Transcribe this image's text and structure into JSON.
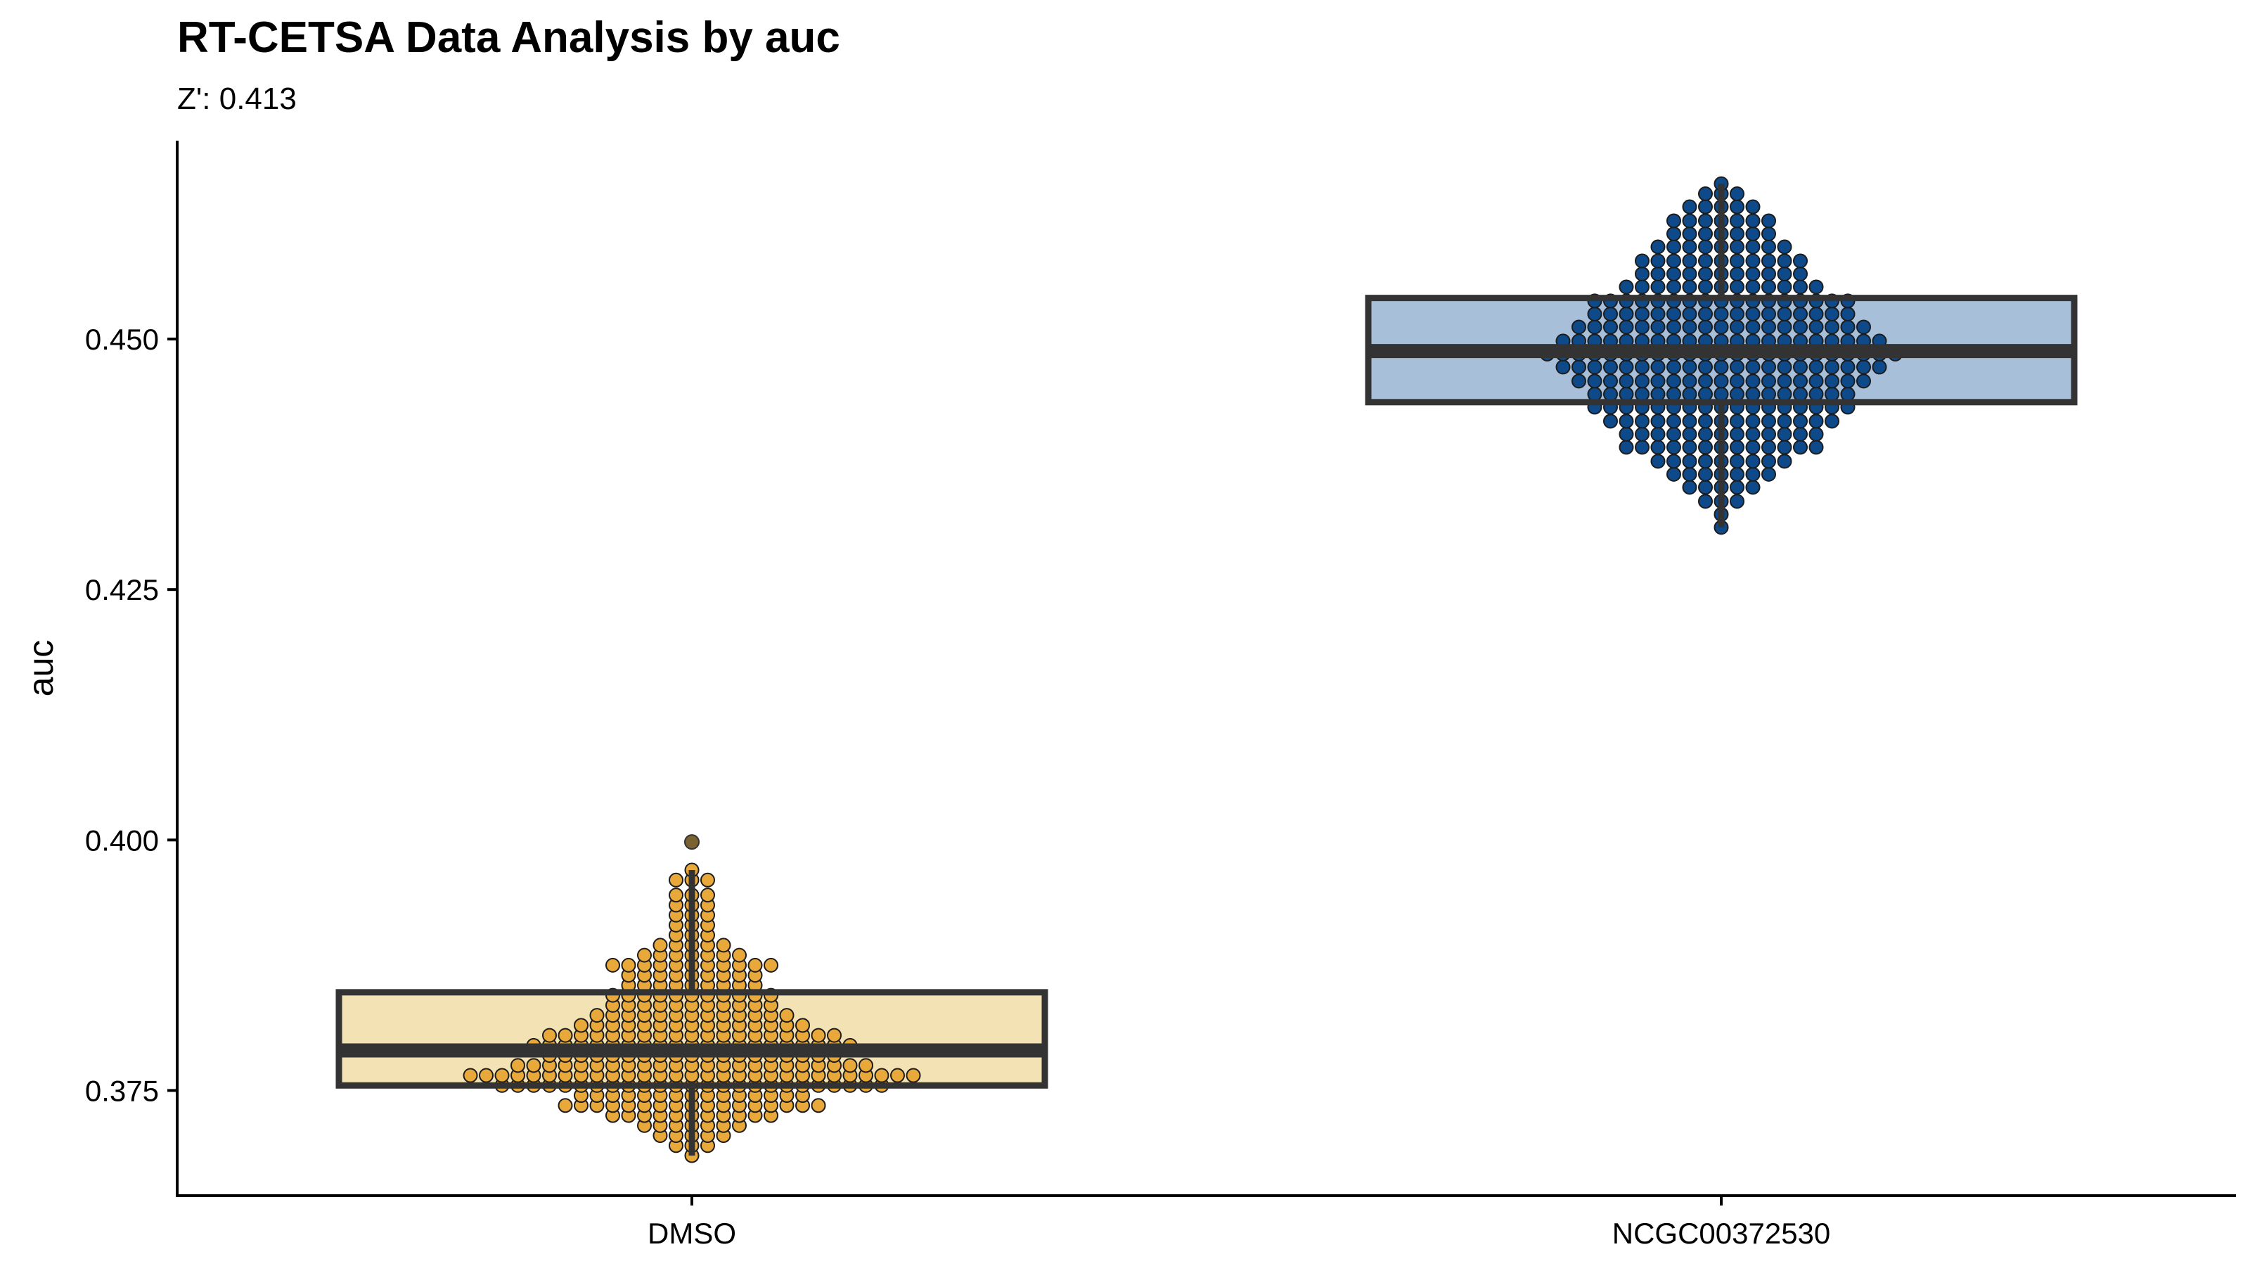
{
  "chart_data": {
    "type": "box",
    "title": "RT-CETSA Data Analysis by auc",
    "subtitle": "Z': 0.413",
    "xlabel": "",
    "ylabel": "auc",
    "ylim": [
      0.3645,
      0.4698
    ],
    "yticks": [
      0.375,
      0.4,
      0.425,
      0.45
    ],
    "ytick_labels": [
      "0.375",
      "0.400",
      "0.425",
      "0.450"
    ],
    "categories": [
      "DMSO",
      "NCGC00372530"
    ],
    "grid": false,
    "legend": "none",
    "boxes": [
      {
        "name": "DMSO",
        "q1": 0.3755,
        "median": 0.379,
        "q3": 0.3848,
        "whisker_low": 0.3685,
        "whisker_high": 0.397,
        "fill": "#f2e2b4",
        "point_color": "#e8a93a",
        "outliers": [
          0.3998
        ]
      },
      {
        "name": "NCGC00372530",
        "q1": 0.4437,
        "median": 0.4488,
        "q3": 0.4541,
        "whisker_low": 0.4312,
        "whisker_high": 0.4655,
        "fill": "#a8bfda",
        "point_color": "#0e4a8a",
        "outliers": []
      }
    ],
    "points": {
      "DMSO": {
        "0.3685": 1,
        "0.3695": 3,
        "0.3705": 5,
        "0.3715": 7,
        "0.3725": 11,
        "0.3735": 17,
        "0.3745": 15,
        "0.3755": 25,
        "0.3765": 29,
        "0.3775": 23,
        "0.3785": 19,
        "0.3795": 21,
        "0.3805": 19,
        "0.3815": 15,
        "0.3825": 13,
        "0.3835": 11,
        "0.3845": 11,
        "0.3855": 9,
        "0.3865": 9,
        "0.3875": 11,
        "0.3885": 7,
        "0.3895": 5,
        "0.3905": 3,
        "0.3915": 3,
        "0.3925": 3,
        "0.3935": 3,
        "0.3945": 3,
        "0.3960": 3,
        "0.3970": 1,
        "0.3998": 1
      },
      "NCGC00372530": {
        "0.4312": 1,
        "0.4325": 1,
        "0.4338": 3,
        "0.4352": 5,
        "0.4365": 7,
        "0.4378": 9,
        "0.4392": 13,
        "0.4405": 13,
        "0.4418": 15,
        "0.4432": 17,
        "0.4445": 17,
        "0.4458": 19,
        "0.4472": 21,
        "0.4485": 23,
        "0.4498": 21,
        "0.4512": 19,
        "0.4525": 17,
        "0.4538": 17,
        "0.4552": 13,
        "0.4565": 11,
        "0.4578": 11,
        "0.4592": 9,
        "0.4605": 7,
        "0.4618": 7,
        "0.4632": 5,
        "0.4645": 3,
        "0.4655": 1
      }
    }
  }
}
